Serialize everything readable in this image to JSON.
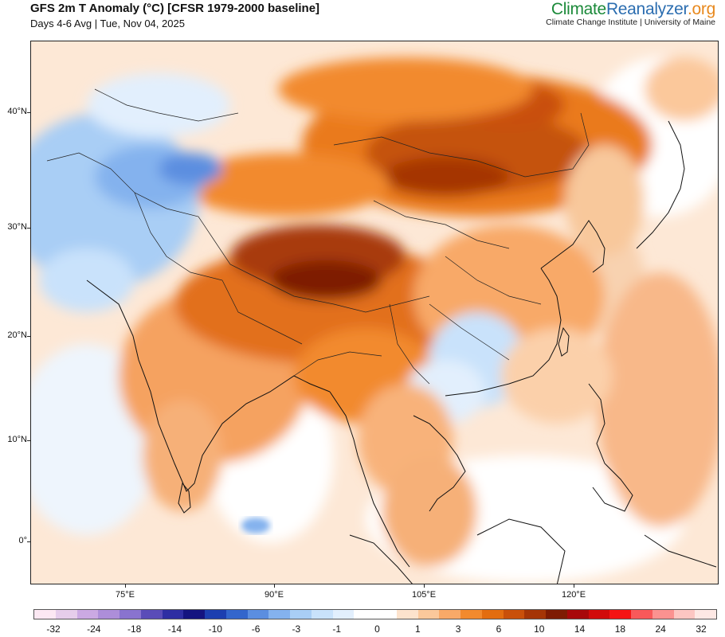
{
  "header": {
    "title": "GFS 2m T Anomaly (°C) [CFSR 1979-2000 baseline]",
    "subtitle": "Days 4-6 Avg | Tue, Nov 04, 2025"
  },
  "brand": {
    "part1": "Climate",
    "part2": "Reanalyzer",
    "part3": ".org",
    "subline": "Climate Change Institute | University of Maine",
    "colors": {
      "climate": "#1c8a3a",
      "reanalyzer": "#2b6db0",
      "org": "#e8891e"
    }
  },
  "axes": {
    "lat_labels": [
      "40°N",
      "30°N",
      "20°N",
      "10°N",
      "0°"
    ],
    "lon_labels": [
      "75°E",
      "90°E",
      "105°E",
      "120°E"
    ]
  },
  "legend": {
    "labels": [
      "-32",
      "-24",
      "-18",
      "-14",
      "-10",
      "-6",
      "-3",
      "-1",
      "0",
      "1",
      "3",
      "6",
      "10",
      "14",
      "18",
      "24",
      "32"
    ],
    "colors": [
      "#fce8f3",
      "#e6cdeb",
      "#cba9e3",
      "#ad8ed9",
      "#8973cf",
      "#5a4cb8",
      "#2e2ea3",
      "#141480",
      "#1c3fb0",
      "#3366cc",
      "#5b8ee0",
      "#84b2ee",
      "#a9cef5",
      "#c9e2fb",
      "#e2effd",
      "#ffffff",
      "#ffffff",
      "#fde3cd",
      "#fbc89b",
      "#f8a968",
      "#f28a2e",
      "#e36d10",
      "#c9500a",
      "#a53506",
      "#7e1b03",
      "#a8080a",
      "#d10b0b",
      "#f51414",
      "#f8595a",
      "#fb9290",
      "#fdc6c2",
      "#fee8e4"
    ]
  },
  "map": {
    "land_color": "#f2a25d",
    "ocean_color": "#fbe7d6",
    "anomaly_notes": "warm over Tibetan plateau and Mongolia; cool over Afghanistan/Central Asia and southern China"
  }
}
